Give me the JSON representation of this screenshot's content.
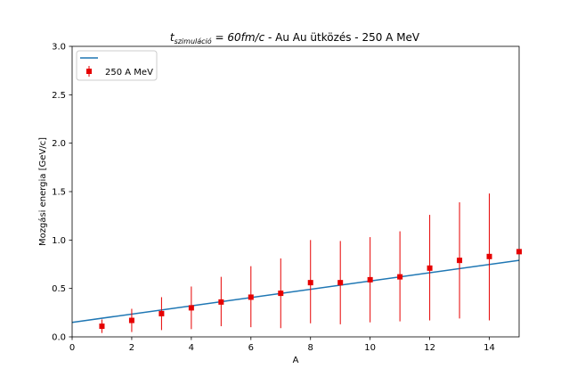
{
  "chart_data": {
    "type": "scatter",
    "title": {
      "math_main": "t",
      "math_sub": "szimuláció",
      "math_rest": " = 60fm/c",
      "text": " - Au Au ütközés - 250 A MeV"
    },
    "xlabel": "A",
    "ylabel": "Mozgási energia [GeV/c]",
    "xlim": [
      0,
      15
    ],
    "ylim": [
      0,
      3.0
    ],
    "x_ticks": [
      0,
      2,
      4,
      6,
      8,
      10,
      12,
      14
    ],
    "x_tick_labels": [
      "0",
      "2",
      "4",
      "6",
      "8",
      "10",
      "12",
      "14"
    ],
    "y_ticks": [
      0,
      0.5,
      1.0,
      1.5,
      2.0,
      2.5,
      3.0
    ],
    "y_tick_labels": [
      "0.0",
      "0.5",
      "1.0",
      "1.5",
      "2.0",
      "2.5",
      "3.0"
    ],
    "grid": false,
    "legend_position": "upper-left",
    "fit_line": {
      "name": "",
      "color": "#1f77b4",
      "x": [
        0,
        15
      ],
      "y": [
        0.15,
        0.79
      ]
    },
    "series": [
      {
        "name": "250 A MeV",
        "color": "#e60000",
        "x": [
          1,
          2,
          3,
          4,
          5,
          6,
          7,
          8,
          9,
          10,
          11,
          12,
          13,
          14,
          15
        ],
        "y": [
          0.11,
          0.17,
          0.24,
          0.3,
          0.36,
          0.41,
          0.45,
          0.56,
          0.56,
          0.59,
          0.62,
          0.71,
          0.79,
          0.83,
          0.88
        ],
        "err_low": [
          0.07,
          0.12,
          0.17,
          0.22,
          0.25,
          0.31,
          0.36,
          0.42,
          0.43,
          0.44,
          0.46,
          0.54,
          0.6,
          0.66,
          0.0
        ],
        "err_high": [
          0.07,
          0.12,
          0.17,
          0.22,
          0.26,
          0.32,
          0.36,
          0.44,
          0.43,
          0.44,
          0.47,
          0.55,
          0.6,
          0.65,
          0.0
        ]
      }
    ]
  }
}
